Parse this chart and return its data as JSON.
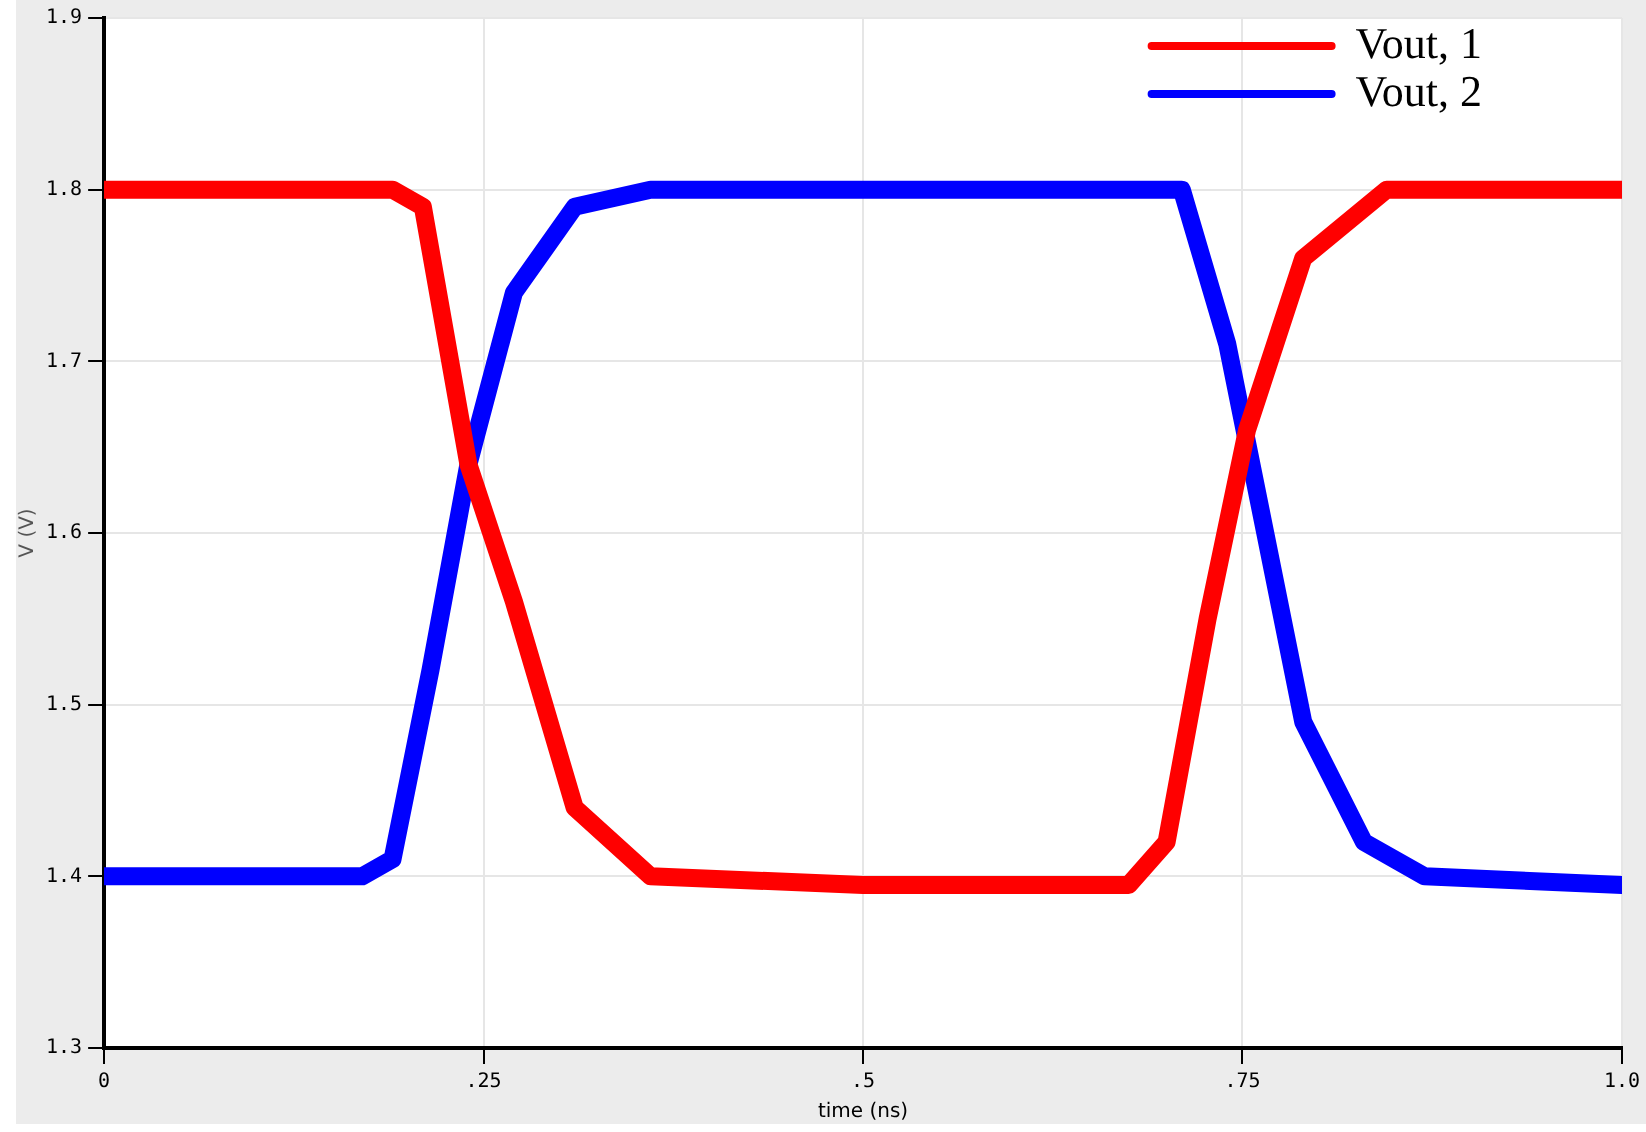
{
  "chart_data": {
    "type": "line",
    "xlabel": "time (ns)",
    "ylabel": "V (V)",
    "xlim": [
      0,
      1
    ],
    "xticks": [
      0,
      {
        "value": 0.25,
        "label": ".25"
      },
      {
        "value": 0.5,
        "label": ".5"
      },
      {
        "value": 0.75,
        "label": ".75"
      },
      {
        "value": 1,
        "label": "1.0"
      }
    ],
    "ylim": [
      1.3,
      1.9
    ],
    "yticks": [
      1.3,
      1.4,
      1.5,
      1.6,
      1.7,
      1.8,
      1.9
    ],
    "grid": true,
    "legend": "top right",
    "marker": "none",
    "line_style": "solid",
    "series": [
      {
        "name": "Vout, 1",
        "color": "#ff0000",
        "x": [
          0,
          0.1,
          0.19,
          0.21,
          0.24,
          0.27,
          0.31,
          0.36,
          0.5,
          0.675,
          0.7,
          0.727,
          0.753,
          0.79,
          0.845,
          1
        ],
        "values": [
          1.8,
          1.8,
          1.8,
          1.79,
          1.64,
          1.56,
          1.44,
          1.4,
          1.395,
          1.395,
          1.42,
          1.55,
          1.66,
          1.76,
          1.8,
          1.8
        ]
      },
      {
        "name": "Vout, 2",
        "color": "#0000ff",
        "x": [
          0,
          0.1,
          0.17,
          0.19,
          0.215,
          0.24,
          0.27,
          0.31,
          0.36,
          0.5,
          0.71,
          0.74,
          0.765,
          0.79,
          0.83,
          0.87,
          1
        ],
        "values": [
          1.4,
          1.4,
          1.4,
          1.41,
          1.52,
          1.64,
          1.74,
          1.79,
          1.8,
          1.8,
          1.8,
          1.71,
          1.6,
          1.49,
          1.42,
          1.4,
          1.395
        ]
      }
    ]
  }
}
